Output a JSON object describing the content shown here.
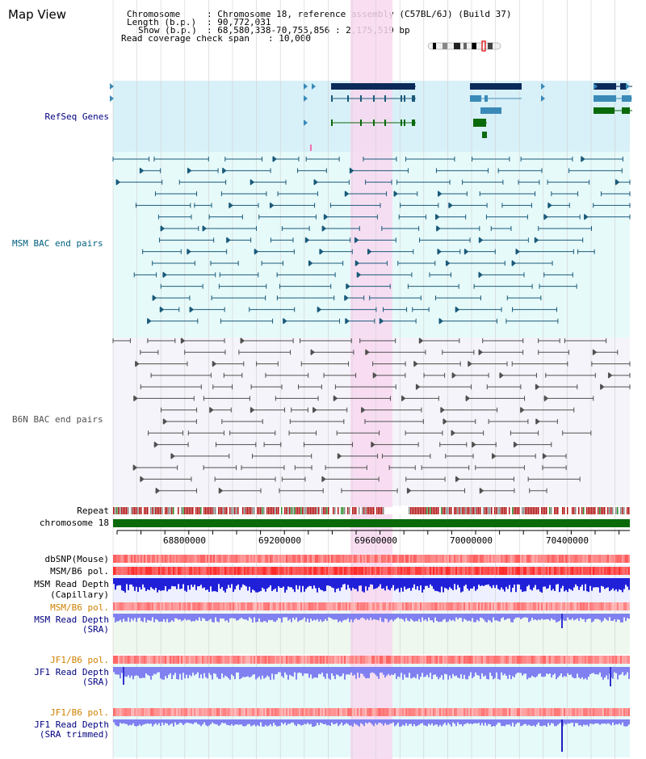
{
  "view": {
    "title": "Map View"
  },
  "info": {
    "chromosome_label": "Chromosome",
    "chromosome_value": ": Chromosome 18, reference assembly (C57BL/6J) (Build 37)",
    "length_label": "Length (b.p.)",
    "length_value": ": 90,772,031",
    "show_label": "Show (b.p.)",
    "show_value": ": 68,580,338-70,755,856 : 2,175,519 bp",
    "span_label": "Read coverage check span",
    "span_value": ": 10,000"
  },
  "tracks": {
    "refseq": "RefSeq Genes",
    "msm_bac": "MSM BAC end pairs",
    "b6n_bac": "B6N BAC end pairs",
    "repeat": "Repeat",
    "chromosome": "chromosome 18",
    "dbsnp": "dbSNP(Mouse)",
    "msm_b6_pol_1": "MSM/B6 pol.",
    "msm_read_depth_cap_1": "MSM Read Depth",
    "msm_read_depth_cap_2": "(Capillary)",
    "msm_b6_pol_2": "MSM/B6 pol.",
    "msm_read_depth_sra_1": "MSM Read Depth",
    "msm_read_depth_sra_2": "(SRA)",
    "jf1_b6_pol_1": "JF1/B6 pol.",
    "jf1_read_depth_1": "JF1 Read Depth",
    "jf1_read_depth_2": "(SRA)",
    "jf1_b6_pol_2": "JF1/B6 pol.",
    "jf1_read_depth_trim_1": "JF1 Read Depth",
    "jf1_read_depth_trim_2": "(SRA trimmed)"
  },
  "axis": {
    "ticks": [
      "68800000",
      "69200000",
      "69600000",
      "70000000",
      "70400000"
    ]
  },
  "colors": {
    "refseq_bg": "#d8f0f8",
    "msm_bg": "#e6fafa",
    "b6n_bg": "#f4f4fa",
    "highlight": "#f8d8f0",
    "gene_dark": "#0a2a5a",
    "gene_mid": "#3a8ab8",
    "gene_green": "#0a6a0a",
    "msm_pair": "#1a5a7a",
    "b6n_pair": "#505050",
    "chromosome_bar": "#0a6a0a",
    "label_navy": "#000080",
    "label_teal": "#006080",
    "label_orange": "#d08000",
    "depth_blue": "#2020d8",
    "depth_light": "#8080f0"
  }
}
